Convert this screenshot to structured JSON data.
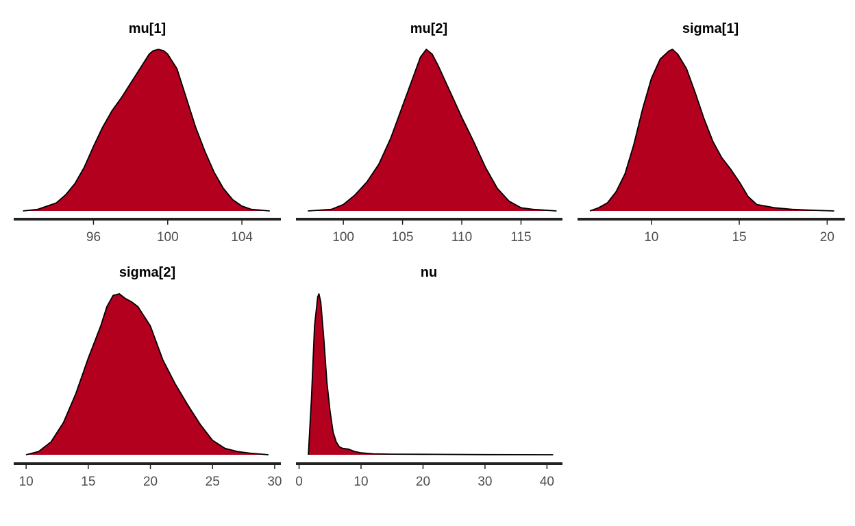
{
  "colors": {
    "fill": "#b2001e",
    "outline": "#000000",
    "axis": "#222222",
    "tick_text": "#4d4d4d",
    "title_text": "#000000",
    "background": "#ffffff"
  },
  "chart_data": [
    {
      "type": "area",
      "subtype": "density",
      "title": "mu[1]",
      "xlabel": "",
      "ylabel": "",
      "grid": false,
      "xlim": [
        91.7,
        106.1
      ],
      "ticks": [
        96,
        100,
        104
      ],
      "tick_labels": [
        "96",
        "100",
        "104"
      ],
      "x": [
        92.2,
        93.0,
        94.0,
        94.5,
        95.0,
        95.5,
        96.0,
        96.5,
        97.0,
        97.5,
        98.0,
        98.5,
        99.0,
        99.2,
        99.5,
        99.8,
        100.0,
        100.5,
        101.0,
        101.5,
        102.0,
        102.5,
        103.0,
        103.5,
        104.0,
        104.5,
        105.0,
        105.5
      ],
      "y": [
        0.0,
        0.01,
        0.05,
        0.1,
        0.17,
        0.27,
        0.4,
        0.52,
        0.62,
        0.7,
        0.79,
        0.88,
        0.97,
        0.99,
        1.0,
        0.99,
        0.97,
        0.88,
        0.7,
        0.52,
        0.37,
        0.24,
        0.14,
        0.07,
        0.03,
        0.01,
        0.005,
        0.0
      ]
    },
    {
      "type": "area",
      "subtype": "density",
      "title": "mu[2]",
      "xlabel": "",
      "ylabel": "",
      "grid": false,
      "xlim": [
        96.0,
        118.5
      ],
      "ticks": [
        100,
        105,
        110,
        115
      ],
      "tick_labels": [
        "100",
        "105",
        "110",
        "115"
      ],
      "x": [
        97.0,
        99.0,
        100.0,
        101.0,
        102.0,
        103.0,
        104.0,
        105.0,
        106.0,
        106.5,
        107.0,
        107.5,
        108.0,
        109.0,
        110.0,
        111.0,
        112.0,
        113.0,
        114.0,
        115.0,
        116.0,
        117.0,
        118.0
      ],
      "y": [
        0.0,
        0.01,
        0.04,
        0.1,
        0.18,
        0.29,
        0.45,
        0.65,
        0.85,
        0.95,
        1.0,
        0.97,
        0.9,
        0.74,
        0.58,
        0.43,
        0.27,
        0.14,
        0.06,
        0.02,
        0.01,
        0.005,
        0.0
      ]
    },
    {
      "type": "area",
      "subtype": "density",
      "title": "sigma[1]",
      "xlabel": "",
      "ylabel": "",
      "grid": false,
      "xlim": [
        5.8,
        21.0
      ],
      "ticks": [
        10,
        15,
        20
      ],
      "tick_labels": [
        "10",
        "15",
        "20"
      ],
      "x": [
        6.5,
        7.0,
        7.5,
        8.0,
        8.5,
        9.0,
        9.5,
        10.0,
        10.5,
        11.0,
        11.2,
        11.5,
        12.0,
        12.5,
        13.0,
        13.5,
        14.0,
        14.5,
        15.0,
        15.5,
        16.0,
        17.0,
        18.0,
        19.0,
        20.4
      ],
      "y": [
        0.0,
        0.02,
        0.05,
        0.12,
        0.23,
        0.41,
        0.63,
        0.82,
        0.94,
        0.99,
        1.0,
        0.97,
        0.88,
        0.73,
        0.57,
        0.43,
        0.33,
        0.26,
        0.18,
        0.09,
        0.04,
        0.02,
        0.01,
        0.005,
        0.0
      ]
    },
    {
      "type": "area",
      "subtype": "density",
      "title": "sigma[2]",
      "xlabel": "",
      "ylabel": "",
      "grid": false,
      "xlim": [
        9.0,
        30.5
      ],
      "ticks": [
        10,
        15,
        20,
        25,
        30
      ],
      "tick_labels": [
        "10",
        "15",
        "20",
        "25",
        "30"
      ],
      "x": [
        10.0,
        11.0,
        12.0,
        13.0,
        14.0,
        15.0,
        16.0,
        16.5,
        17.0,
        17.5,
        18.0,
        18.5,
        19.0,
        20.0,
        21.0,
        22.0,
        23.0,
        24.0,
        25.0,
        26.0,
        27.0,
        28.0,
        29.5
      ],
      "y": [
        0.0,
        0.02,
        0.08,
        0.2,
        0.38,
        0.6,
        0.8,
        0.92,
        0.99,
        1.0,
        0.97,
        0.95,
        0.92,
        0.8,
        0.59,
        0.44,
        0.31,
        0.19,
        0.09,
        0.04,
        0.02,
        0.01,
        0.0
      ]
    },
    {
      "type": "area",
      "subtype": "density",
      "title": "nu",
      "xlabel": "",
      "ylabel": "",
      "grid": false,
      "xlim": [
        -0.5,
        42.5
      ],
      "ticks": [
        0,
        10,
        20,
        30,
        40
      ],
      "tick_labels": [
        "0",
        "10",
        "20",
        "30",
        "40"
      ],
      "x": [
        1.5,
        2.0,
        2.5,
        3.0,
        3.2,
        3.5,
        4.0,
        4.5,
        5.0,
        5.5,
        6.0,
        6.5,
        7.0,
        8.0,
        9.0,
        10.0,
        12.0,
        15.0,
        20.0,
        30.0,
        41.0
      ],
      "y": [
        0.0,
        0.35,
        0.8,
        0.98,
        1.0,
        0.95,
        0.72,
        0.45,
        0.27,
        0.14,
        0.08,
        0.05,
        0.04,
        0.035,
        0.02,
        0.012,
        0.006,
        0.004,
        0.003,
        0.001,
        0.0
      ]
    }
  ]
}
